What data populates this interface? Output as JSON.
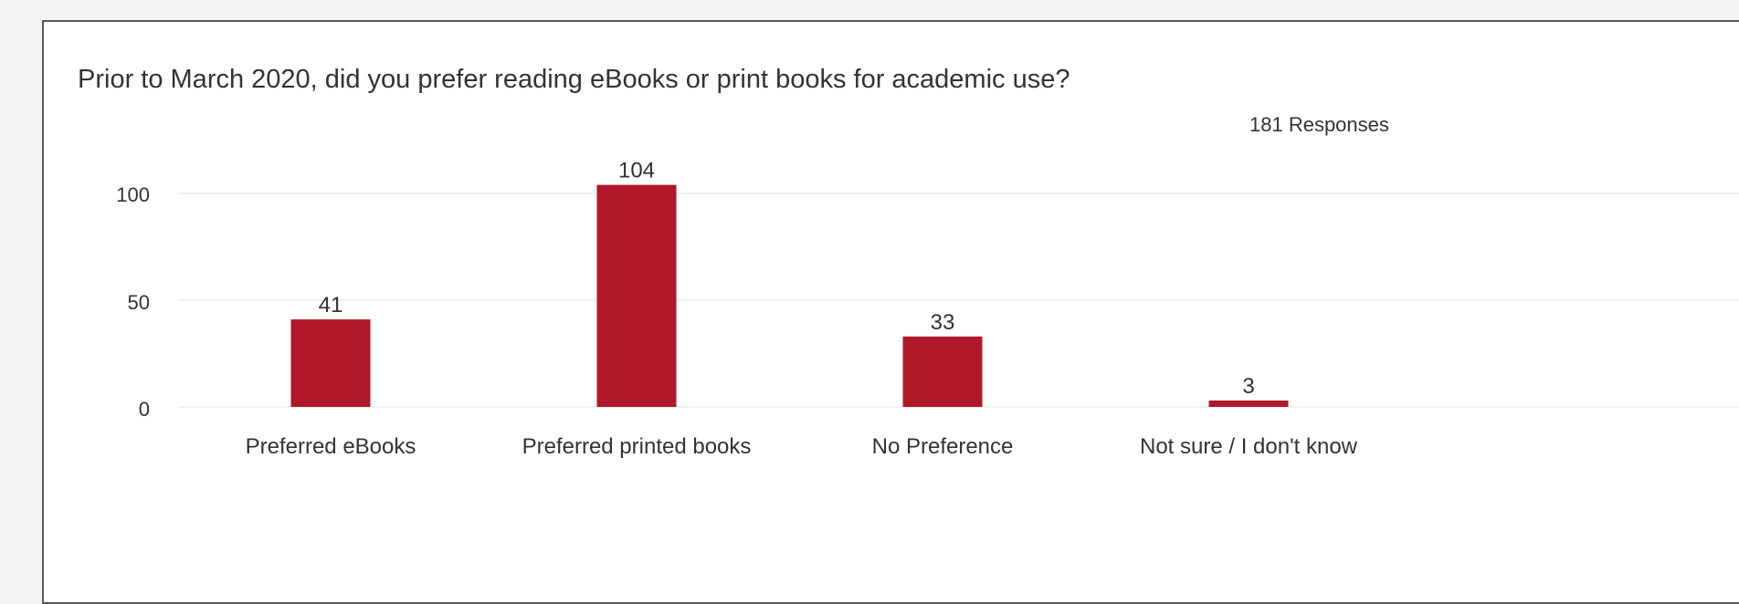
{
  "chart_data": {
    "type": "bar",
    "title": "Prior to March 2020, did you prefer reading eBooks or print books for academic use?",
    "responses_label": "181 Responses",
    "categories": [
      "Preferred eBooks",
      "Preferred printed books",
      "No Preference",
      "Not sure / I don't know"
    ],
    "values": [
      41,
      104,
      33,
      3
    ],
    "yticks": [
      "0",
      "50",
      "100"
    ],
    "ylim": [
      0,
      100
    ],
    "grid": true,
    "bar_color": "#b0182a"
  }
}
